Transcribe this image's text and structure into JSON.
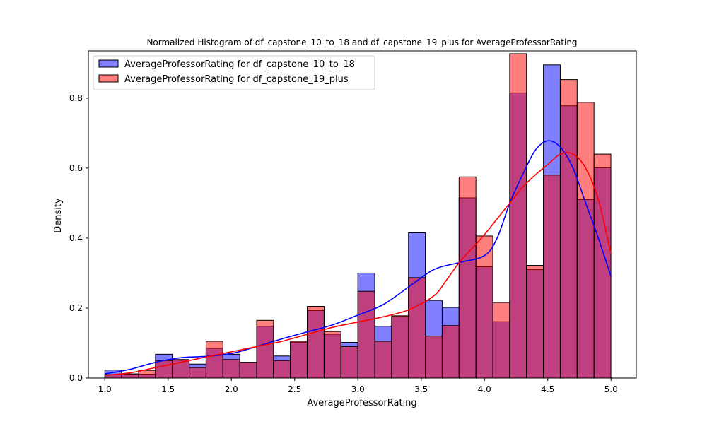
{
  "chart_data": {
    "type": "bar",
    "title": "Normalized Histogram of df_capstone_10_to_18 and df_capstone_19_plus for AverageProfessorRating",
    "xlabel": "AverageProfessorRating",
    "ylabel": "Density",
    "xlim": [
      0.87,
      5.2
    ],
    "ylim": [
      0,
      0.935
    ],
    "xticks": [
      1.0,
      1.5,
      2.0,
      2.5,
      3.0,
      3.5,
      4.0,
      4.5,
      5.0
    ],
    "xtick_labels": [
      "1.0",
      "1.5",
      "2.0",
      "2.5",
      "3.0",
      "3.5",
      "4.0",
      "4.5",
      "5.0"
    ],
    "yticks": [
      0.0,
      0.2,
      0.4,
      0.6,
      0.8
    ],
    "ytick_labels": [
      "0.0",
      "0.2",
      "0.4",
      "0.6",
      "0.8"
    ],
    "legend_position": "top-left",
    "bin_start": 1.0,
    "bin_width": 0.1333,
    "series": [
      {
        "name": "AverageProfessorRating for df_capstone_10_to_18",
        "color": "#0000ff",
        "kde_color": "#0000ff",
        "values": [
          0.023,
          0.011,
          0.011,
          0.068,
          0.051,
          0.04,
          0.085,
          0.068,
          0.045,
          0.148,
          0.063,
          0.102,
          0.193,
          0.125,
          0.102,
          0.3,
          0.148,
          0.176,
          0.415,
          0.222,
          0.202,
          0.515,
          0.318,
          0.161,
          0.815,
          0.31,
          0.895,
          0.778,
          0.51,
          0.601
        ],
        "kde": [
          [
            1.0,
            0.012
          ],
          [
            1.2,
            0.025
          ],
          [
            1.4,
            0.045
          ],
          [
            1.6,
            0.058
          ],
          [
            1.8,
            0.062
          ],
          [
            2.0,
            0.07
          ],
          [
            2.2,
            0.09
          ],
          [
            2.4,
            0.112
          ],
          [
            2.6,
            0.132
          ],
          [
            2.8,
            0.152
          ],
          [
            3.0,
            0.18
          ],
          [
            3.2,
            0.21
          ],
          [
            3.4,
            0.26
          ],
          [
            3.6,
            0.31
          ],
          [
            3.8,
            0.33
          ],
          [
            4.0,
            0.35
          ],
          [
            4.1,
            0.4
          ],
          [
            4.2,
            0.5
          ],
          [
            4.3,
            0.58
          ],
          [
            4.4,
            0.65
          ],
          [
            4.5,
            0.678
          ],
          [
            4.6,
            0.66
          ],
          [
            4.7,
            0.6
          ],
          [
            4.8,
            0.5
          ],
          [
            4.9,
            0.4
          ],
          [
            5.0,
            0.29
          ]
        ]
      },
      {
        "name": "AverageProfessorRating for df_capstone_19_plus",
        "color": "#ff0000",
        "kde_color": "#ff0000",
        "values": [
          0.01,
          0.012,
          0.022,
          0.05,
          0.053,
          0.03,
          0.105,
          0.053,
          0.045,
          0.165,
          0.05,
          0.105,
          0.205,
          0.133,
          0.09,
          0.248,
          0.105,
          0.178,
          0.287,
          0.12,
          0.15,
          0.575,
          0.406,
          0.216,
          0.927,
          0.322,
          0.58,
          0.853,
          0.788,
          0.64
        ],
        "kde": [
          [
            1.0,
            0.008
          ],
          [
            1.2,
            0.015
          ],
          [
            1.4,
            0.03
          ],
          [
            1.6,
            0.045
          ],
          [
            1.8,
            0.06
          ],
          [
            2.0,
            0.075
          ],
          [
            2.2,
            0.09
          ],
          [
            2.4,
            0.105
          ],
          [
            2.6,
            0.125
          ],
          [
            2.8,
            0.145
          ],
          [
            3.0,
            0.16
          ],
          [
            3.2,
            0.175
          ],
          [
            3.4,
            0.195
          ],
          [
            3.6,
            0.235
          ],
          [
            3.7,
            0.28
          ],
          [
            3.8,
            0.33
          ],
          [
            3.9,
            0.37
          ],
          [
            4.0,
            0.41
          ],
          [
            4.1,
            0.455
          ],
          [
            4.2,
            0.5
          ],
          [
            4.3,
            0.545
          ],
          [
            4.4,
            0.58
          ],
          [
            4.5,
            0.61
          ],
          [
            4.6,
            0.64
          ],
          [
            4.7,
            0.64
          ],
          [
            4.8,
            0.6
          ],
          [
            4.9,
            0.51
          ],
          [
            5.0,
            0.355
          ]
        ]
      }
    ]
  }
}
